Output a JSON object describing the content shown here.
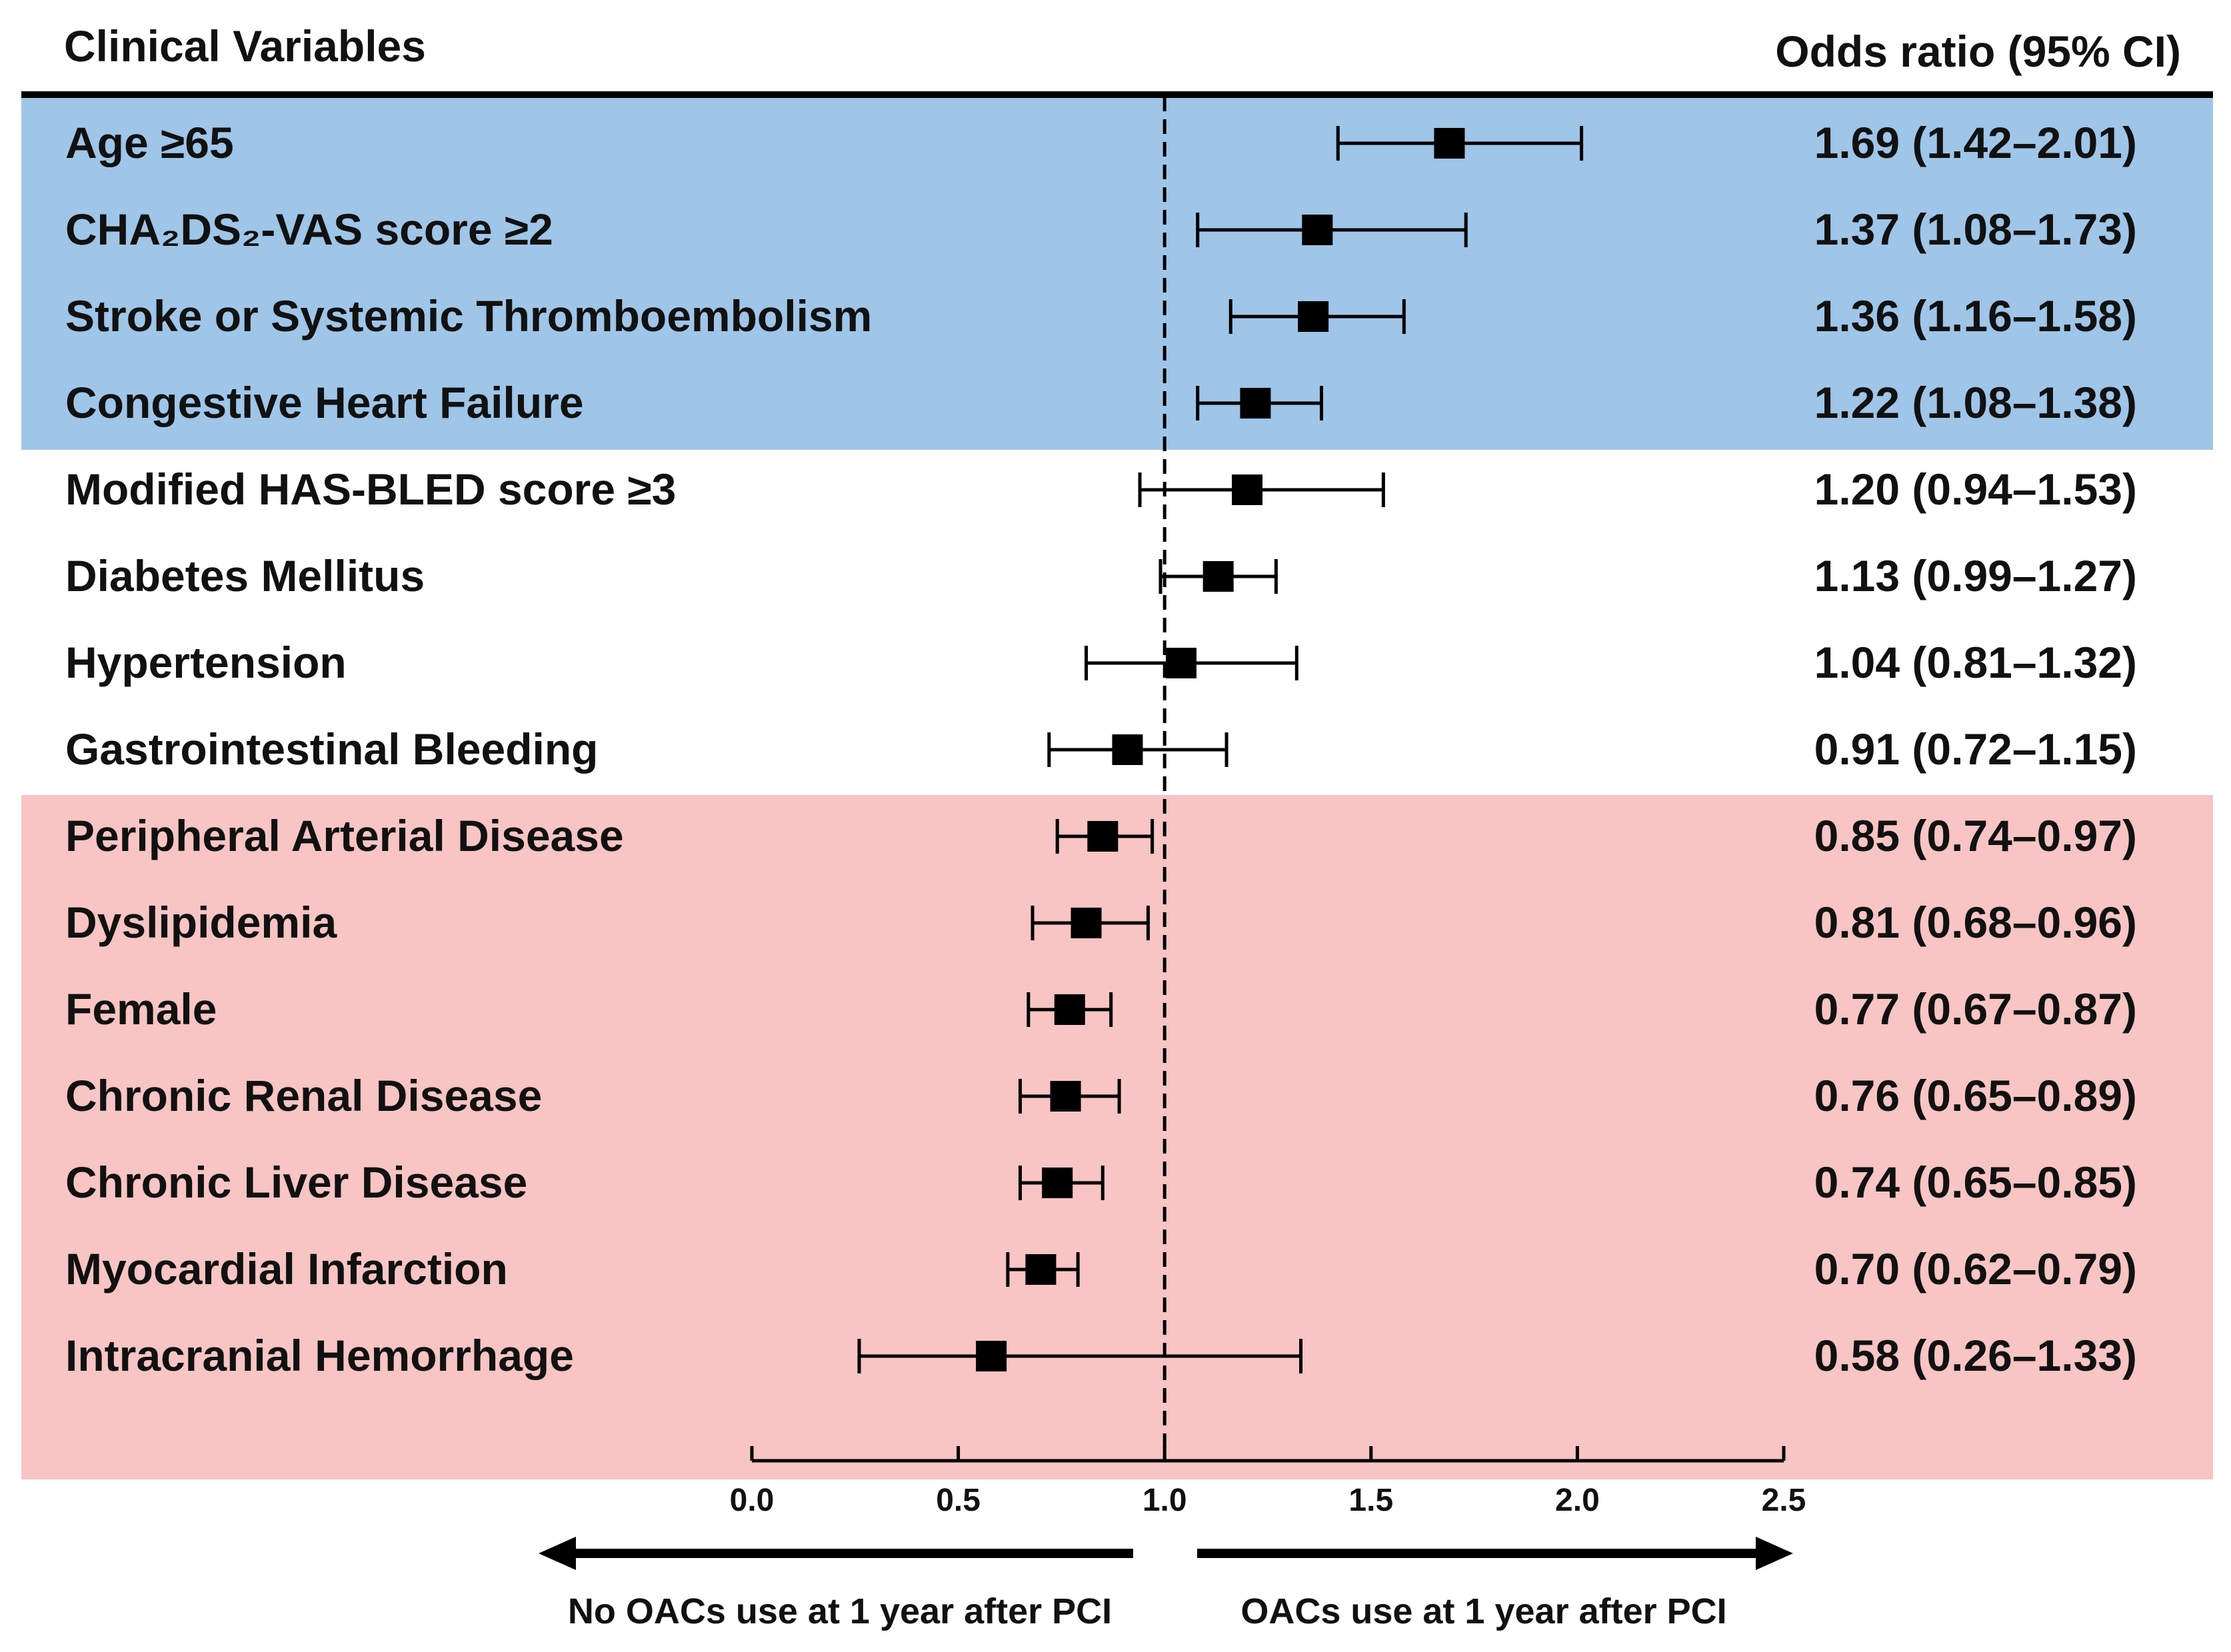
{
  "chart_data": {
    "type": "forest",
    "title": "",
    "xlabel": "",
    "ylabel": "",
    "header": {
      "left": "Clinical Variables",
      "right": "Odds ratio (95% CI)"
    },
    "xlim": [
      0,
      2.5
    ],
    "xticks": [
      0,
      0.5,
      1,
      1.5,
      2,
      2.5
    ],
    "xtick_labels": [
      "0.0",
      "0.5",
      "1.0",
      "1.5",
      "2.0",
      "2.5"
    ],
    "reference_line": 1.0,
    "direction_labels": {
      "left": "No OACs use at 1 year after PCI",
      "right": "OACs use at 1 year after PCI"
    },
    "group_colors": {
      "increased": "#9fc5e8",
      "neutral": "#ffffff",
      "decreased": "#f8c4c4"
    },
    "rows": [
      {
        "label": "Age ≥65",
        "or": 1.69,
        "lo": 1.42,
        "hi": 2.01,
        "text": "1.69 (1.42–2.01)",
        "group": "increased"
      },
      {
        "label": "CHA₂DS₂-VAS score ≥2",
        "or": 1.37,
        "lo": 1.08,
        "hi": 1.73,
        "text": "1.37 (1.08–1.73)",
        "group": "increased"
      },
      {
        "label": "Stroke or Systemic Thromboembolism",
        "or": 1.36,
        "lo": 1.16,
        "hi": 1.58,
        "text": "1.36 (1.16–1.58)",
        "group": "increased"
      },
      {
        "label": "Congestive Heart Failure",
        "or": 1.22,
        "lo": 1.08,
        "hi": 1.38,
        "text": "1.22 (1.08–1.38)",
        "group": "increased"
      },
      {
        "label": "Modified HAS-BLED score ≥3",
        "or": 1.2,
        "lo": 0.94,
        "hi": 1.53,
        "text": "1.20 (0.94–1.53)",
        "group": "neutral"
      },
      {
        "label": "Diabetes Mellitus",
        "or": 1.13,
        "lo": 0.99,
        "hi": 1.27,
        "text": "1.13 (0.99–1.27)",
        "group": "neutral"
      },
      {
        "label": "Hypertension",
        "or": 1.04,
        "lo": 0.81,
        "hi": 1.32,
        "text": "1.04 (0.81–1.32)",
        "group": "neutral"
      },
      {
        "label": "Gastrointestinal Bleeding",
        "or": 0.91,
        "lo": 0.72,
        "hi": 1.15,
        "text": "0.91 (0.72–1.15)",
        "group": "neutral"
      },
      {
        "label": "Peripheral Arterial Disease",
        "or": 0.85,
        "lo": 0.74,
        "hi": 0.97,
        "text": "0.85 (0.74–0.97)",
        "group": "decreased"
      },
      {
        "label": "Dyslipidemia",
        "or": 0.81,
        "lo": 0.68,
        "hi": 0.96,
        "text": "0.81 (0.68–0.96)",
        "group": "decreased"
      },
      {
        "label": "Female",
        "or": 0.77,
        "lo": 0.67,
        "hi": 0.87,
        "text": "0.77 (0.67–0.87)",
        "group": "decreased"
      },
      {
        "label": "Chronic Renal Disease",
        "or": 0.76,
        "lo": 0.65,
        "hi": 0.89,
        "text": "0.76 (0.65–0.89)",
        "group": "decreased"
      },
      {
        "label": "Chronic Liver Disease",
        "or": 0.74,
        "lo": 0.65,
        "hi": 0.85,
        "text": "0.74 (0.65–0.85)",
        "group": "decreased"
      },
      {
        "label": "Myocardial Infarction",
        "or": 0.7,
        "lo": 0.62,
        "hi": 0.79,
        "text": "0.70 (0.62–0.79)",
        "group": "decreased"
      },
      {
        "label": "Intracranial Hemorrhage",
        "or": 0.58,
        "lo": 0.26,
        "hi": 1.33,
        "text": "0.58 (0.26–1.33)",
        "group": "decreased"
      }
    ]
  }
}
